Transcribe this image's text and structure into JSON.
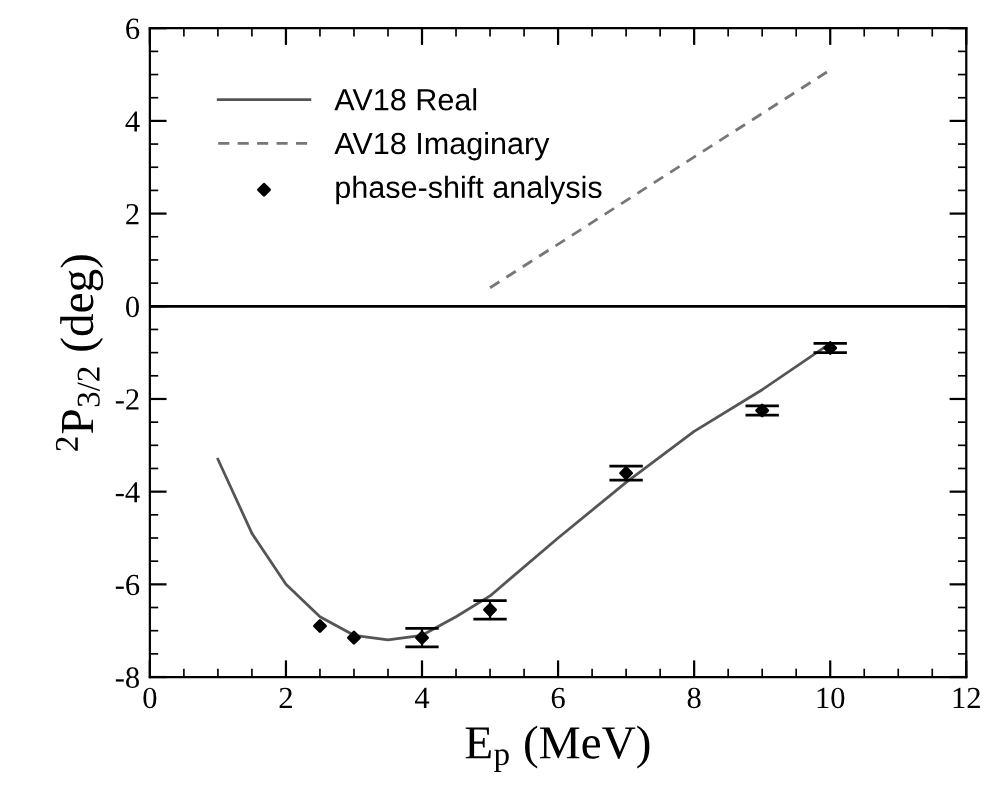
{
  "chart_data": {
    "type": "line",
    "xlabel": "E$_{p}$ (MeV)",
    "ylabel": "$^{2}$P$_{3/2}$ (deg)",
    "xlim": [
      0,
      12
    ],
    "xticks": [
      0,
      2,
      4,
      6,
      8,
      10,
      12
    ],
    "ylim": [
      -8,
      6
    ],
    "yticks": [
      -8,
      -6,
      -4,
      -2,
      0,
      2,
      4,
      6
    ],
    "grid": false,
    "legend": "top left",
    "series": [
      {
        "name": "AV18 Real",
        "line_style": "solid",
        "color": "#555555",
        "x": [
          1,
          1.5,
          2,
          2.5,
          3,
          3.5,
          4,
          4.5,
          5,
          6,
          7,
          8,
          9,
          10
        ],
        "values": [
          -3.3,
          -4.9,
          -6.0,
          -6.7,
          -7.1,
          -7.2,
          -7.1,
          -6.7,
          -6.25,
          -5.0,
          -3.8,
          -2.7,
          -1.8,
          -0.8
        ]
      },
      {
        "name": "AV18 Imaginary",
        "line_style": "dashed",
        "color": "#777777",
        "x": [
          5,
          10
        ],
        "values": [
          0.4,
          5.1
        ]
      },
      {
        "name": "phase-shift analysis",
        "type": "scatter",
        "marker": "diamond",
        "color": "#000000",
        "x": [
          2.5,
          3,
          4,
          5,
          7,
          9,
          10
        ],
        "values": [
          -6.9,
          -7.15,
          -7.15,
          -6.55,
          -3.6,
          -2.25,
          -0.9
        ],
        "errors": [
          null,
          null,
          0.2,
          0.2,
          0.15,
          0.1,
          0.1
        ]
      }
    ],
    "ref_lines": [
      {
        "axis": "y",
        "value": 0,
        "color": "#000000",
        "line_style": "solid"
      }
    ]
  }
}
